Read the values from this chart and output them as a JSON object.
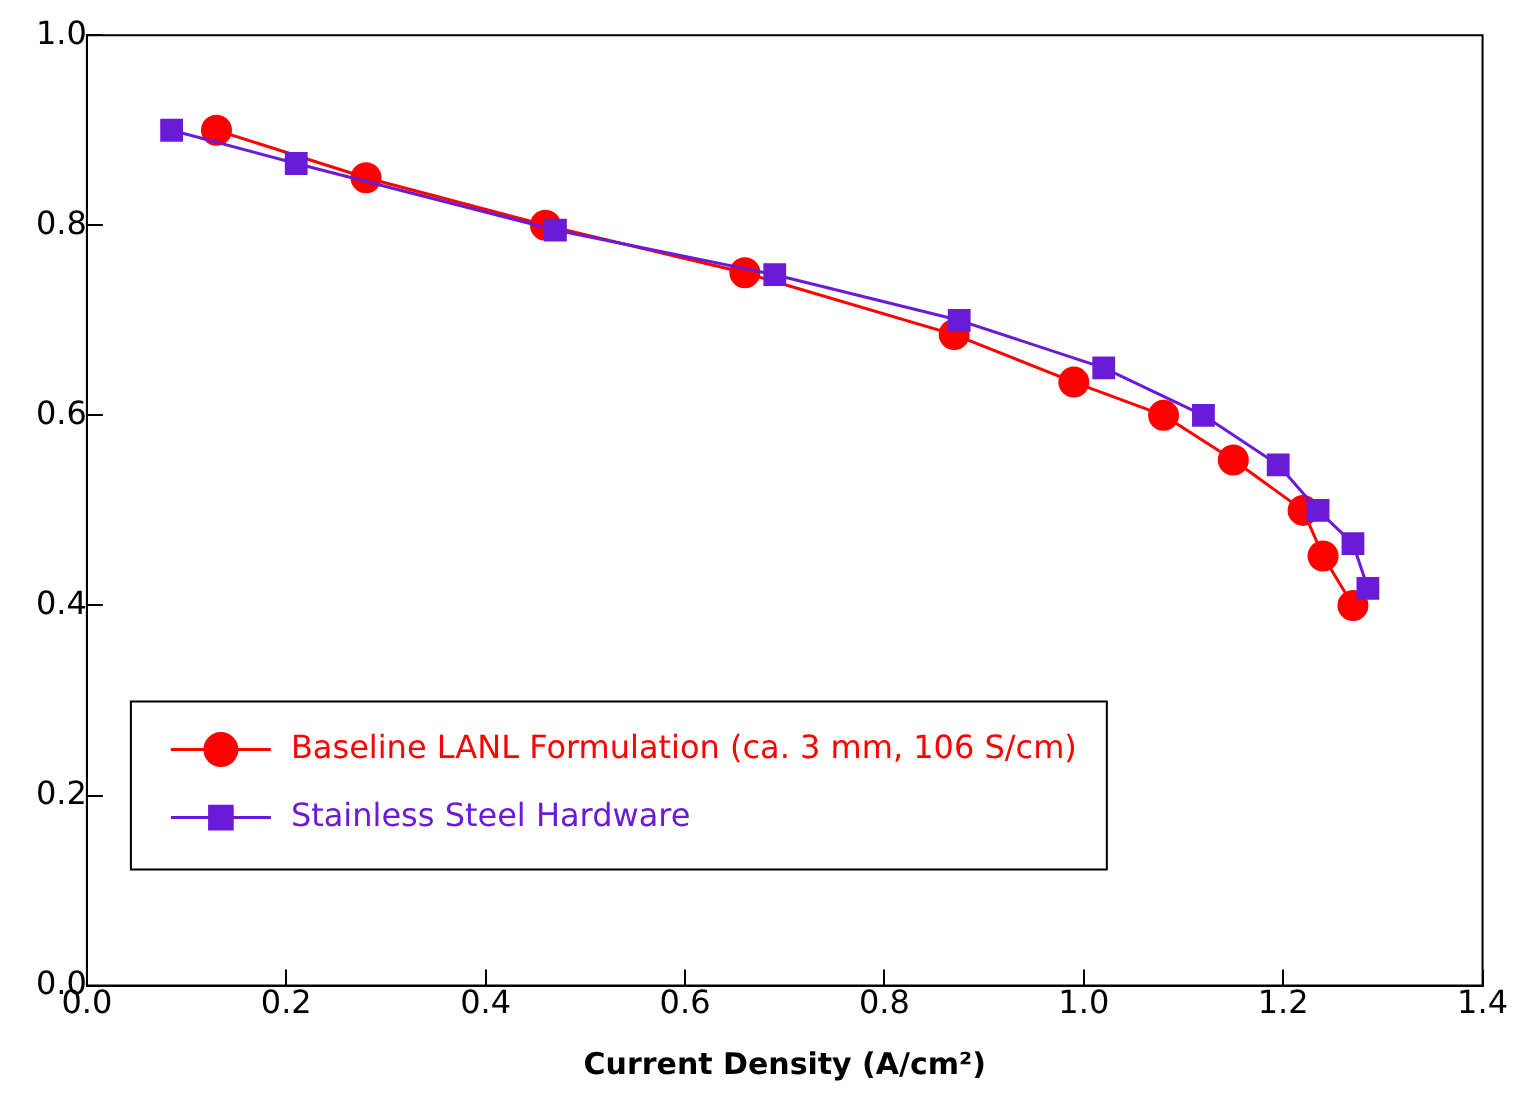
{
  "chart_data": {
    "type": "line",
    "xlabel": "Current Density (A/cm²)",
    "xlim": [
      0,
      1.4
    ],
    "xticks": [
      {
        "value": 0,
        "label": "0.0"
      },
      0.2,
      0.4,
      0.6,
      0.8,
      {
        "value": 1,
        "label": "1.0"
      },
      1.2,
      1.4
    ],
    "ylim": [
      0,
      1
    ],
    "yticks": [
      {
        "value": 0,
        "label": "0.0"
      },
      0.2,
      0.4,
      0.6,
      0.8,
      {
        "value": 1,
        "label": "1.0"
      }
    ],
    "grid": false,
    "legend": "bottom left",
    "line_style": "solid",
    "series": [
      {
        "name": "Baseline LANL Formulation (ca. 3 mm, 106 S/cm)",
        "color": "#ff0000",
        "marker": "circle",
        "x": [
          0.13,
          0.28,
          0.46,
          0.66,
          0.87,
          0.99,
          1.08,
          1.15,
          1.22,
          1.24,
          1.27
        ],
        "values": [
          0.9,
          0.85,
          0.8,
          0.75,
          0.685,
          0.635,
          0.6,
          0.553,
          0.5,
          0.452,
          0.4
        ]
      },
      {
        "name": "Stainless Steel Hardware",
        "color": "#6a1bd8",
        "marker": "square",
        "x": [
          0.085,
          0.21,
          0.47,
          0.69,
          0.875,
          1.02,
          1.12,
          1.195,
          1.235,
          1.27,
          1.285
        ],
        "values": [
          0.9,
          0.865,
          0.795,
          0.748,
          0.7,
          0.65,
          0.6,
          0.548,
          0.5,
          0.465,
          0.418
        ]
      }
    ]
  }
}
